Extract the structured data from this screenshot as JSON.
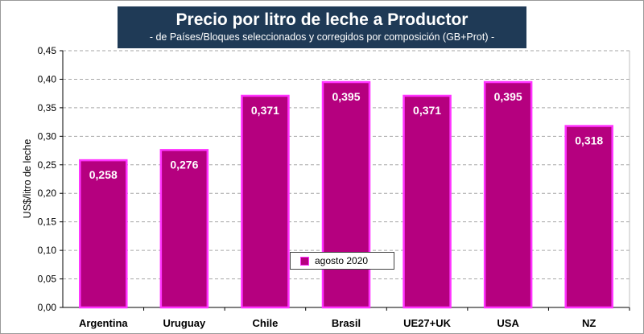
{
  "chart_data": {
    "type": "bar",
    "title": "Precio por litro de leche a Productor",
    "subtitle": "-  de Países/Bloques seleccionados y corregidos por composición (GB+Prot) -",
    "xlabel": "",
    "ylabel": "US$/litro de leche",
    "ylim": [
      0,
      0.45
    ],
    "ytick_step": 0.05,
    "grid": true,
    "legend_position": "bottom-center",
    "categories": [
      "Argentina",
      "Uruguay",
      "Chile",
      "Brasil",
      "UE27+UK",
      "USA",
      "NZ"
    ],
    "series": [
      {
        "name": "agosto 2020",
        "values": [
          0.258,
          0.276,
          0.371,
          0.395,
          0.371,
          0.395,
          0.318
        ],
        "labels": [
          "0,258",
          "0,276",
          "0,371",
          "0,395",
          "0,371",
          "0,395",
          "0,318"
        ]
      }
    ],
    "ytick_labels": [
      "0,00",
      "0,05",
      "0,10",
      "0,15",
      "0,20",
      "0,25",
      "0,30",
      "0,35",
      "0,40",
      "0,45"
    ]
  },
  "colors": {
    "title_bg": "#1f3a56",
    "bar_fill": "#b5007f",
    "bar_border": "#ff33ff",
    "grid": "#a6a6a6"
  }
}
